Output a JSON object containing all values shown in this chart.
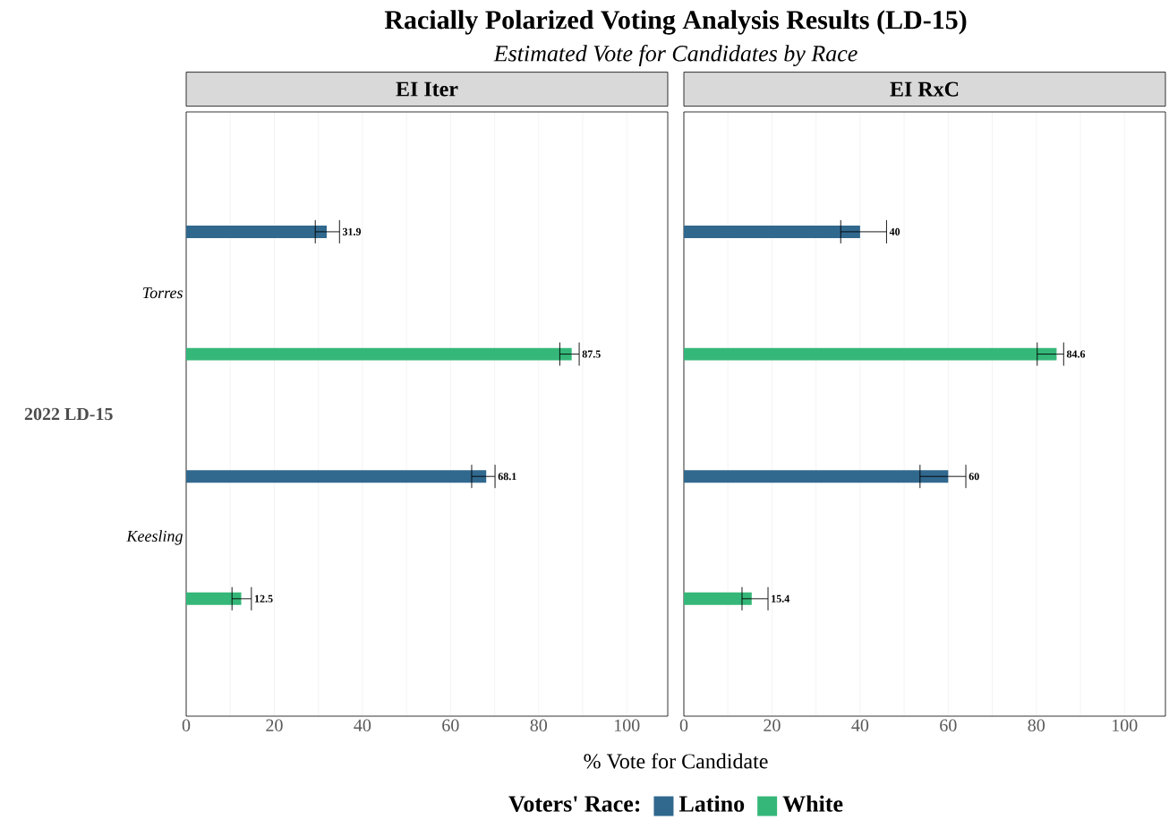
{
  "chart_data": [
    {
      "type": "bar",
      "orientation": "horizontal",
      "title": "EI Iter",
      "annotations": [
        "Racially Polarized Voting Analysis Results (LD-15)",
        "*Estimated Vote for Candidates by Race*"
      ],
      "xlabel": "% Vote for Candidate",
      "ylabel": "2022 LD-15",
      "legend_title": "Voters' Race:",
      "legend": "bottom",
      "grid": "x",
      "data_labels": true,
      "categories": [
        "Torres",
        "Keesling"
      ],
      "xlim": [
        0,
        109.3
      ],
      "xticks": [
        0,
        20,
        40,
        60,
        80,
        100
      ],
      "series": [
        {
          "name": "Latino",
          "color": "#31688e",
          "values": [
            31.9,
            68.1
          ],
          "errors": [
            [
              29.3,
              34.8
            ],
            [
              64.8,
              70.1
            ]
          ]
        },
        {
          "name": "White",
          "color": "#35b779",
          "values": [
            87.5,
            12.5
          ],
          "errors": [
            [
              84.8,
              89.2
            ],
            [
              10.4,
              14.8
            ]
          ]
        }
      ]
    },
    {
      "type": "bar",
      "orientation": "horizontal",
      "title": "EI RxC",
      "grid": "x",
      "data_labels": true,
      "tick_labels": "x",
      "categories": [
        null,
        null
      ],
      "xlim": [
        0,
        109.3
      ],
      "xticks": [
        0,
        20,
        40,
        60,
        80,
        100
      ],
      "series": [
        {
          "color": "#31688e",
          "values": [
            40,
            60
          ],
          "errors": [
            [
              35.6,
              46.0
            ],
            [
              53.6,
              64.0
            ]
          ]
        },
        {
          "color": "#35b779",
          "values": [
            84.6,
            15.4
          ],
          "errors": [
            [
              80.2,
              86.2
            ],
            [
              13.2,
              19.1
            ]
          ]
        }
      ]
    }
  ]
}
